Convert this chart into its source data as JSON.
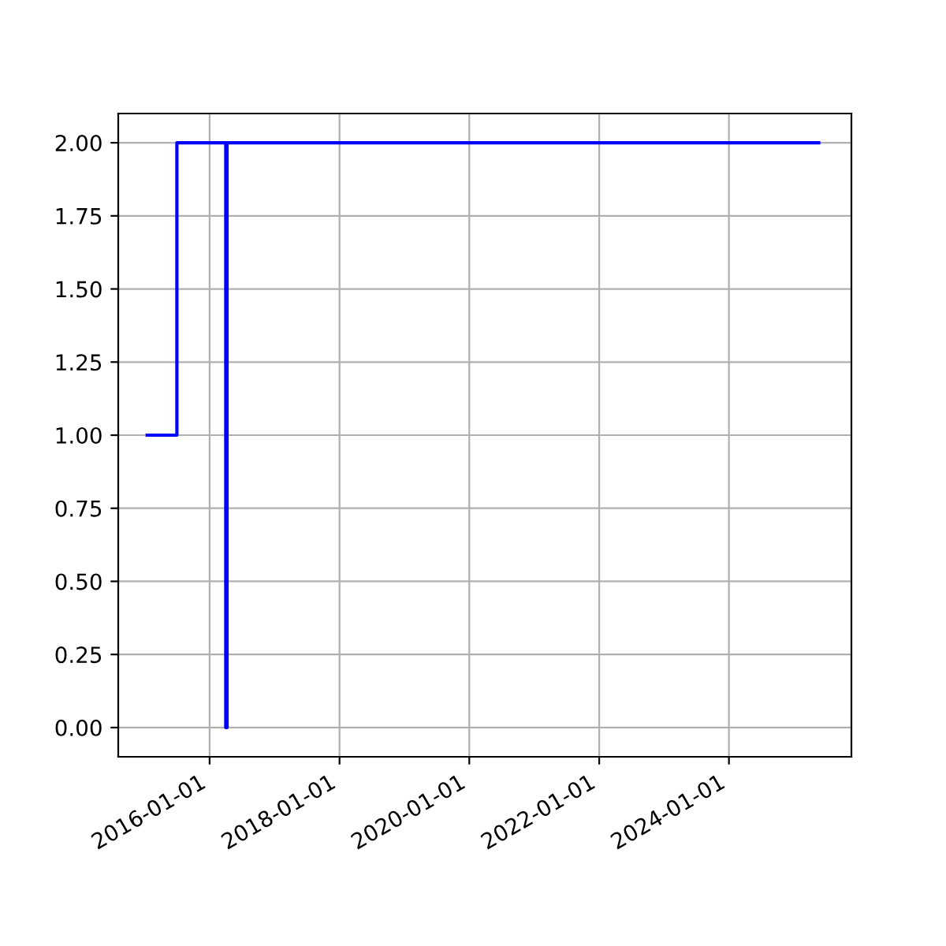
{
  "chart_data": {
    "type": "step",
    "x": [
      "2015-01-15",
      "2015-07-01",
      "2016-04-01",
      "2016-04-08",
      "2025-05-20"
    ],
    "series": [
      {
        "color": "#0000ff",
        "values": [
          1,
          2,
          0,
          2,
          2
        ]
      }
    ],
    "xlim": [
      "2014-08-05",
      "2025-11-20"
    ],
    "xticks": [
      "2016-01-01",
      "2018-01-01",
      "2020-01-01",
      "2022-01-01",
      "2024-01-01"
    ],
    "ylim": [
      -0.1,
      2.1
    ],
    "yticks": [
      {
        "value": 0,
        "label": "0.00"
      },
      {
        "value": 0.25,
        "label": "0.25"
      },
      {
        "value": 0.5,
        "label": "0.50"
      },
      {
        "value": 0.75,
        "label": "0.75"
      },
      {
        "value": 1,
        "label": "1.00"
      },
      {
        "value": 1.25,
        "label": "1.25"
      },
      {
        "value": 1.5,
        "label": "1.50"
      },
      {
        "value": 1.75,
        "label": "1.75"
      },
      {
        "value": 2,
        "label": "2.00"
      }
    ],
    "grid": true
  }
}
